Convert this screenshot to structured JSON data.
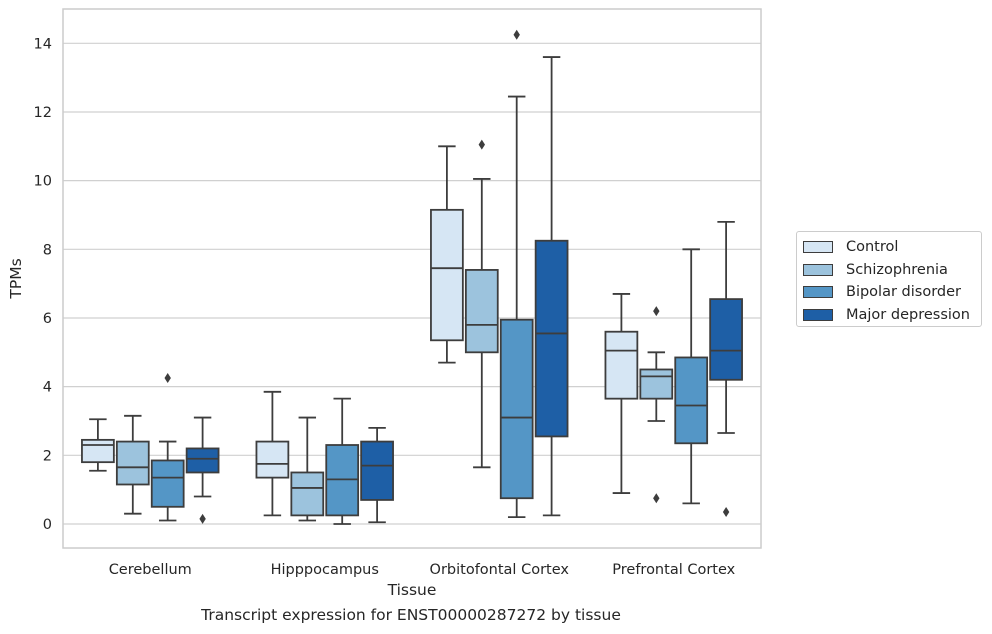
{
  "chart_data": {
    "type": "box",
    "xlabel": "Tissue",
    "ylabel": "TPMs",
    "ylim": [
      -0.7,
      15.0
    ],
    "yticks": [
      0,
      2,
      4,
      6,
      8,
      10,
      12,
      14
    ],
    "categories": [
      "Cerebellum",
      "Hipppocampus",
      "Orbitofontal Cortex",
      "Prefrontal Cortex"
    ],
    "grid": true,
    "legend_position": "right",
    "series": [
      {
        "name": "Control",
        "color": "#d6e6f4",
        "boxes": [
          {
            "whislo": 1.55,
            "q1": 1.8,
            "med": 2.3,
            "q3": 2.45,
            "whishi": 3.05,
            "fliers": []
          },
          {
            "whislo": 0.25,
            "q1": 1.35,
            "med": 1.75,
            "q3": 2.4,
            "whishi": 3.85,
            "fliers": []
          },
          {
            "whislo": 4.7,
            "q1": 5.35,
            "med": 7.45,
            "q3": 9.15,
            "whishi": 11.0,
            "fliers": []
          },
          {
            "whislo": 0.9,
            "q1": 3.65,
            "med": 5.05,
            "q3": 5.6,
            "whishi": 6.7,
            "fliers": []
          }
        ]
      },
      {
        "name": "Schizophrenia",
        "color": "#9cc3dd",
        "boxes": [
          {
            "whislo": 0.3,
            "q1": 1.15,
            "med": 1.65,
            "q3": 2.4,
            "whishi": 3.15,
            "fliers": []
          },
          {
            "whislo": 0.1,
            "q1": 0.25,
            "med": 1.05,
            "q3": 1.5,
            "whishi": 3.1,
            "fliers": []
          },
          {
            "whislo": 1.65,
            "q1": 5.0,
            "med": 5.8,
            "q3": 7.4,
            "whishi": 10.05,
            "fliers": [
              11.05
            ]
          },
          {
            "whislo": 3.0,
            "q1": 3.65,
            "med": 4.3,
            "q3": 4.5,
            "whishi": 5.0,
            "fliers": [
              6.2,
              0.75
            ]
          }
        ]
      },
      {
        "name": "Bipolar disorder",
        "color": "#5496c6",
        "boxes": [
          {
            "whislo": 0.1,
            "q1": 0.5,
            "med": 1.35,
            "q3": 1.85,
            "whishi": 2.4,
            "fliers": [
              4.25
            ]
          },
          {
            "whislo": 0.0,
            "q1": 0.25,
            "med": 1.3,
            "q3": 2.3,
            "whishi": 3.65,
            "fliers": []
          },
          {
            "whislo": 0.2,
            "q1": 0.75,
            "med": 3.1,
            "q3": 5.95,
            "whishi": 12.45,
            "fliers": [
              14.25
            ]
          },
          {
            "whislo": 0.6,
            "q1": 2.35,
            "med": 3.45,
            "q3": 4.85,
            "whishi": 8.0,
            "fliers": []
          }
        ]
      },
      {
        "name": "Major depression",
        "color": "#1e5fa6",
        "boxes": [
          {
            "whislo": 0.8,
            "q1": 1.5,
            "med": 1.9,
            "q3": 2.2,
            "whishi": 3.1,
            "fliers": [
              0.15
            ]
          },
          {
            "whislo": 0.05,
            "q1": 0.7,
            "med": 1.7,
            "q3": 2.4,
            "whishi": 2.8,
            "fliers": []
          },
          {
            "whislo": 0.25,
            "q1": 2.55,
            "med": 5.55,
            "q3": 8.25,
            "whishi": 13.6,
            "fliers": []
          },
          {
            "whislo": 2.65,
            "q1": 4.2,
            "med": 5.05,
            "q3": 6.55,
            "whishi": 8.8,
            "fliers": [
              0.35
            ]
          }
        ]
      }
    ]
  },
  "caption": "Transcript expression for ENST00000287272 by tissue"
}
